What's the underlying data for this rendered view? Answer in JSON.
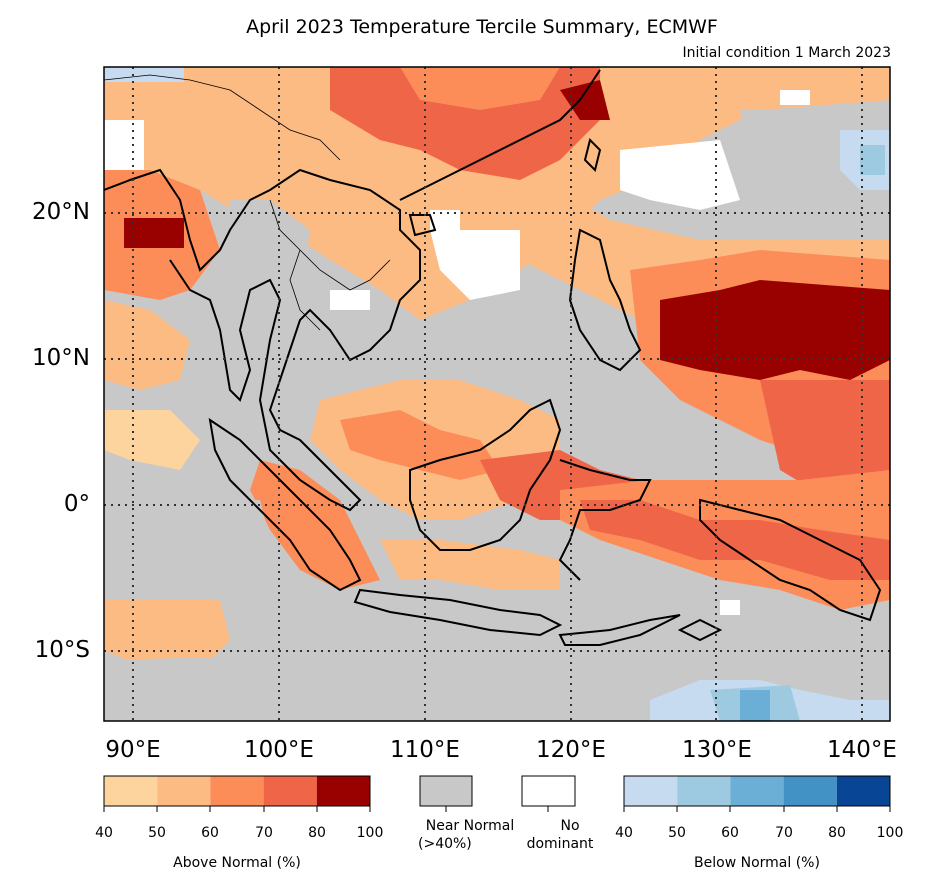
{
  "title": "April 2023 Temperature Tercile Summary, ECMWF",
  "subtitle": "Initial condition 1 March 2023",
  "map": {
    "lon_range": [
      88,
      142
    ],
    "lat_range": [
      -15,
      30
    ],
    "gridline_style": "dotted",
    "lat_labels": [
      "20°N",
      "10°N",
      "0°",
      "10°S"
    ],
    "lon_labels": [
      "90°E",
      "100°E",
      "110°E",
      "120°E",
      "130°E",
      "140°E"
    ]
  },
  "colors": {
    "above": [
      "#fdd49e",
      "#fdbb84",
      "#fc8d59",
      "#ef6548",
      "#990000"
    ],
    "below": [
      "#c6dbef",
      "#9ecae1",
      "#6baed6",
      "#4292c6",
      "#084594"
    ],
    "near_normal": "#c8c8c8",
    "no_dominant": "#ffffff",
    "coastline": "#000000"
  },
  "legend": {
    "above_ticks": [
      "40",
      "50",
      "60",
      "70",
      "80",
      "100"
    ],
    "above_label": "Above Normal (%)",
    "near_normal_label_1": "Near Normal",
    "near_normal_label_2": "(>40%)",
    "no_dominant_label_1": "No",
    "no_dominant_label_2": "dominant",
    "below_ticks": [
      "40",
      "50",
      "60",
      "70",
      "80",
      "100"
    ],
    "below_label": "Below Normal (%)"
  }
}
